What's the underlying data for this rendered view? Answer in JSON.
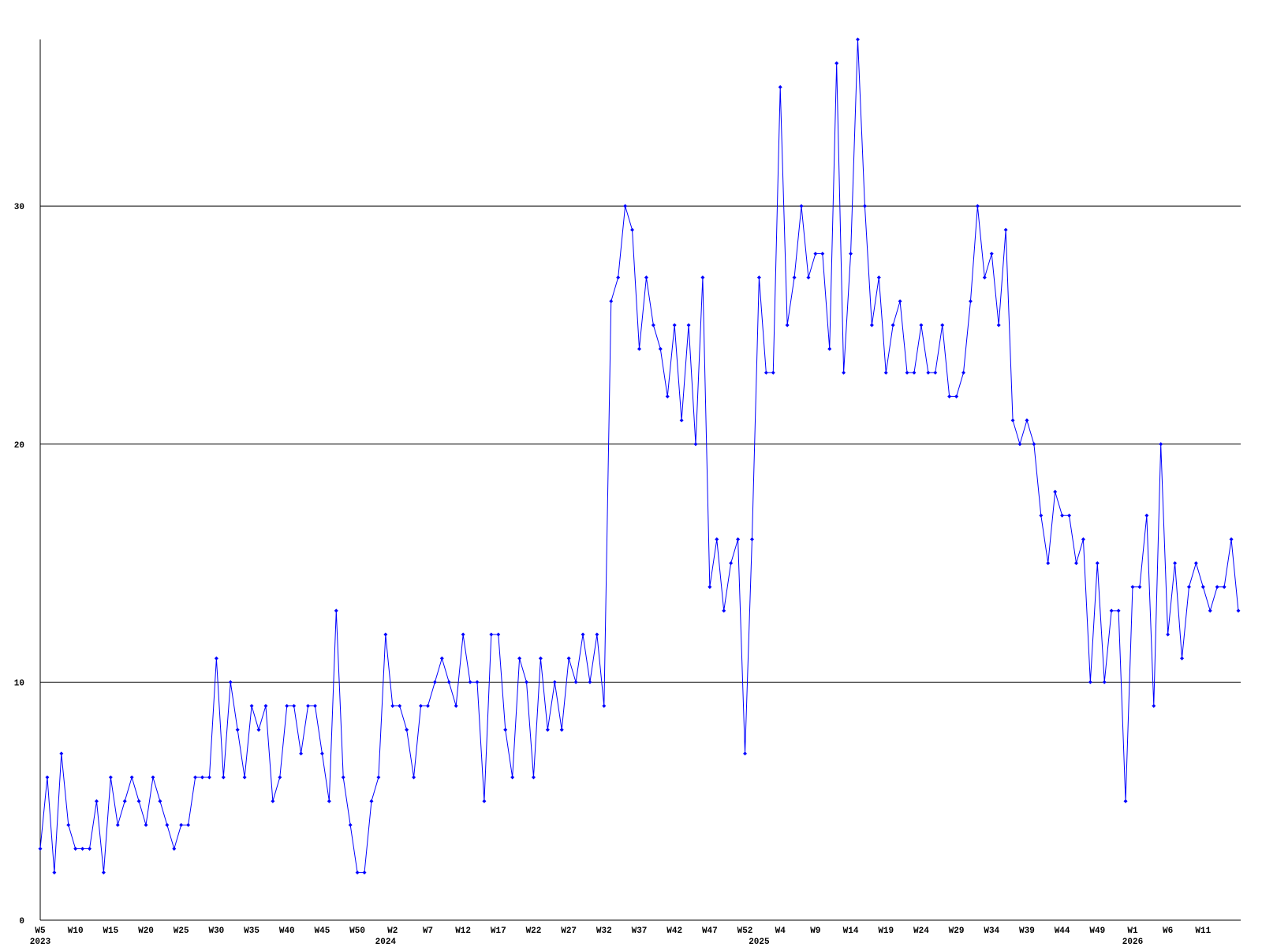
{
  "chart_data": {
    "type": "line",
    "categories": [
      "W5",
      null,
      null,
      null,
      null,
      "W10",
      null,
      null,
      null,
      null,
      "W15",
      null,
      null,
      null,
      null,
      "W20",
      null,
      null,
      null,
      null,
      "W25",
      null,
      null,
      null,
      null,
      "W30",
      null,
      null,
      null,
      null,
      "W35",
      null,
      null,
      null,
      null,
      "W40",
      null,
      null,
      null,
      null,
      "W45",
      null,
      null,
      null,
      null,
      "W50",
      null,
      null,
      null,
      null,
      "W2",
      null,
      null,
      null,
      null,
      "W7",
      null,
      null,
      null,
      null,
      "W12",
      null,
      null,
      null,
      null,
      "W17",
      null,
      null,
      null,
      null,
      "W22",
      null,
      null,
      null,
      null,
      "W27",
      null,
      null,
      null,
      null,
      "W32",
      null,
      null,
      null,
      null,
      "W37",
      null,
      null,
      null,
      null,
      "W42",
      null,
      null,
      null,
      null,
      "W47",
      null,
      null,
      null,
      null,
      "W52",
      null,
      null,
      null,
      null,
      "W4",
      null,
      null,
      null,
      null,
      "W9",
      null,
      null,
      null,
      null,
      "W14",
      null,
      null,
      null,
      null,
      "W19",
      null,
      null,
      null,
      null,
      "W24",
      null,
      null,
      null,
      null,
      "W29",
      null,
      null,
      null,
      null,
      "W34",
      null,
      null,
      null,
      null,
      "W39",
      null,
      null,
      null,
      null,
      "W44",
      null,
      null,
      null,
      null,
      "W49",
      null,
      null,
      null,
      null,
      "W1",
      null,
      null,
      null,
      null,
      "W6",
      null,
      null,
      null,
      null,
      "W11",
      null,
      null,
      null,
      null,
      null
    ],
    "year_labels": [
      "2023",
      null,
      null,
      null,
      null,
      null,
      null,
      null,
      null,
      null,
      null,
      null,
      null,
      null,
      null,
      null,
      null,
      null,
      null,
      null,
      null,
      null,
      null,
      null,
      null,
      null,
      null,
      null,
      null,
      null,
      null,
      null,
      null,
      null,
      null,
      null,
      null,
      null,
      null,
      null,
      null,
      null,
      null,
      null,
      null,
      null,
      null,
      null,
      null,
      "2024",
      null,
      null,
      null,
      null,
      null,
      null,
      null,
      null,
      null,
      null,
      null,
      null,
      null,
      null,
      null,
      null,
      null,
      null,
      null,
      null,
      null,
      null,
      null,
      null,
      null,
      null,
      null,
      null,
      null,
      null,
      null,
      null,
      null,
      null,
      null,
      null,
      null,
      null,
      null,
      null,
      null,
      null,
      null,
      null,
      null,
      null,
      null,
      null,
      null,
      null,
      null,
      null,
      "2025",
      null,
      null,
      null,
      null,
      null,
      null,
      null,
      null,
      null,
      null,
      null,
      null,
      null,
      null,
      null,
      null,
      null,
      null,
      null,
      null,
      null,
      null,
      null,
      null,
      null,
      null,
      null,
      null,
      null,
      null,
      null,
      null,
      null,
      null,
      null,
      null,
      null,
      null,
      null,
      null,
      null,
      null,
      null,
      null,
      null,
      null,
      null,
      null,
      null,
      null,
      null,
      null,
      "2026",
      null,
      null,
      null,
      null,
      null,
      null,
      null,
      null,
      null,
      null,
      null,
      null,
      null,
      null,
      null
    ],
    "series": [
      {
        "color": "#0000ff",
        "values": [
          3,
          6,
          2,
          7,
          4,
          3,
          3,
          3,
          5,
          2,
          6,
          4,
          5,
          6,
          5,
          4,
          6,
          5,
          4,
          3,
          4,
          4,
          6,
          6,
          6,
          11,
          6,
          10,
          8,
          6,
          9,
          8,
          9,
          5,
          6,
          9,
          9,
          7,
          9,
          9,
          7,
          5,
          13,
          6,
          4,
          2,
          2,
          5,
          6,
          12,
          9,
          9,
          8,
          6,
          9,
          9,
          10,
          11,
          10,
          9,
          12,
          10,
          10,
          5,
          12,
          12,
          8,
          6,
          11,
          10,
          6,
          11,
          8,
          10,
          8,
          11,
          10,
          12,
          10,
          12,
          9,
          26,
          27,
          30,
          29,
          24,
          27,
          25,
          24,
          22,
          25,
          21,
          25,
          20,
          27,
          14,
          16,
          13,
          15,
          16,
          7,
          16,
          27,
          23,
          23,
          35,
          25,
          27,
          30,
          27,
          28,
          28,
          24,
          36,
          23,
          28,
          37,
          30,
          25,
          27,
          23,
          25,
          26,
          23,
          23,
          25,
          23,
          23,
          25,
          22,
          22,
          23,
          26,
          30,
          27,
          28,
          25,
          29,
          21,
          20,
          21,
          20,
          17,
          15,
          18,
          17,
          17,
          15,
          16,
          10,
          15,
          10,
          13,
          13,
          5,
          14,
          14,
          17,
          9,
          20,
          12,
          15,
          11,
          14,
          15,
          14,
          13,
          14,
          14,
          16,
          13
        ]
      }
    ],
    "ylim": [
      0,
      37
    ],
    "yticks": [
      0,
      10,
      20,
      30
    ],
    "grid": true
  }
}
